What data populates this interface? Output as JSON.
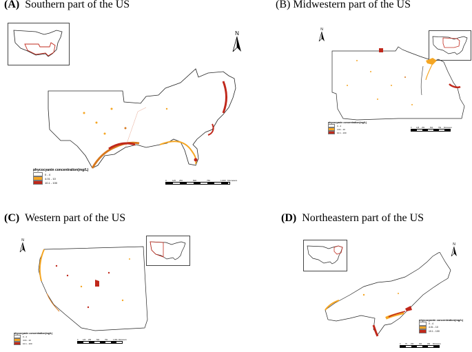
{
  "panels": {
    "a": {
      "label": "(A)",
      "title": "Southern part of the US",
      "north": "N",
      "legend": {
        "title": "phycocyanin concentration(mg/L)",
        "items": [
          {
            "label": "0 - 4",
            "color": "#ffffff"
          },
          {
            "label": "4.01 - 10",
            "color": "#f5a623"
          },
          {
            "label": "10.1 - 100",
            "color": "#c0281b"
          }
        ]
      },
      "scale": {
        "ticks": [
          "0",
          "125",
          "250",
          "500",
          "750",
          "1,000"
        ],
        "unit": "Kilometers"
      }
    },
    "b": {
      "label": "(B)",
      "title": "Midwestern part of the US",
      "north": "N",
      "legend": {
        "title": "phycocyanin concentration(mg/L)",
        "items": [
          {
            "label": "0 - 4",
            "color": "#ffffff"
          },
          {
            "label": "4.01 - 10",
            "color": "#f5a623"
          },
          {
            "label": "10.1 - 100",
            "color": "#c0281b"
          }
        ]
      },
      "scale": {
        "ticks": [
          "0",
          "125",
          "250",
          "500",
          "750"
        ],
        "unit": "Kilometers"
      }
    },
    "c": {
      "label": "(C)",
      "title": "Western part of the US",
      "north": "N",
      "legend": {
        "title": "phycocyanin concentration(mg/L)",
        "items": [
          {
            "label": "0 - 4",
            "color": "#ffffff"
          },
          {
            "label": "4.01 - 10",
            "color": "#f5a623"
          },
          {
            "label": "10.1 - 100",
            "color": "#c0281b"
          }
        ]
      },
      "scale": {
        "ticks": [
          "0",
          "125",
          "250",
          "500",
          "750",
          "1,000"
        ],
        "unit": "Kilometers"
      }
    },
    "d": {
      "label": "(D)",
      "title": "Northeastern part of the US",
      "north": "N",
      "legend": {
        "title": "phycocyanin concentration(mg/L)",
        "items": [
          {
            "label": "0 - 4",
            "color": "#ffffff"
          },
          {
            "label": "4.01 - 10",
            "color": "#f5a623"
          },
          {
            "label": "10.1 - 100",
            "color": "#c0281b"
          }
        ]
      },
      "scale": {
        "ticks": [
          "0",
          "75",
          "150",
          "300",
          "450"
        ],
        "unit": "Kilometers"
      }
    }
  }
}
